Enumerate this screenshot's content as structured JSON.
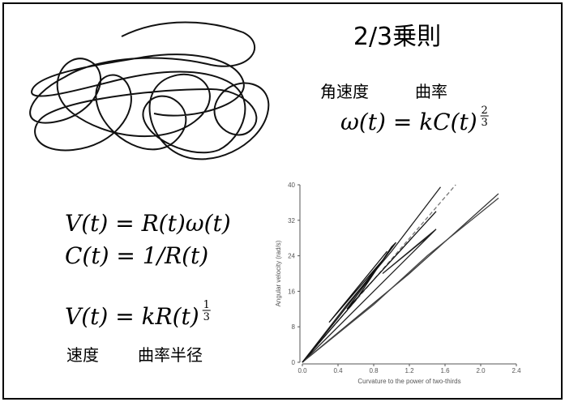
{
  "slide": {
    "title": "2/3乗則",
    "label_angular_velocity": "角速度",
    "label_curvature": "曲率",
    "formula_top": {
      "text": "ω(t) = kC(t)",
      "exp_num": "2",
      "exp_den": "3"
    },
    "formula_1": "V(t) = R(t)ω(t)",
    "formula_2": "C(t) = 1/R(t)",
    "formula_3": {
      "text": "V(t) = kR(t)",
      "exp_num": "1",
      "exp_den": "3"
    },
    "label_velocity": "速度",
    "label_radius": "曲率半径"
  },
  "chart_data": {
    "type": "line",
    "x_label": "Curvature to the power of two-thirds",
    "y_label": "Angular velocity (rad/s)",
    "xlim": [
      0,
      2.4
    ],
    "ylim": [
      0,
      40
    ],
    "xticks": [
      {
        "value": 0,
        "label": "0.0"
      },
      0.4,
      0.8,
      1.2,
      1.6,
      {
        "value": 2,
        "label": "2.0"
      },
      2.4
    ],
    "yticks": [
      0,
      8,
      16,
      24,
      32,
      40
    ],
    "series": [
      {
        "color": "#222222",
        "x": [
          0,
          0.5,
          1.0,
          1.55
        ],
        "values": [
          0,
          13,
          25,
          39.5
        ]
      },
      {
        "color": "#777777",
        "dashed": true,
        "x": [
          0,
          1.72
        ],
        "values": [
          0,
          40
        ]
      },
      {
        "color": "#333333",
        "x": [
          0,
          1.2,
          2.2
        ],
        "values": [
          0,
          20,
          38
        ]
      },
      {
        "color": "#222222",
        "x": [
          0,
          1.5,
          0.9,
          1.45
        ],
        "values": [
          0,
          30,
          20,
          29
        ]
      },
      {
        "color": "#111111",
        "x": [
          0,
          0.6,
          1.0,
          1.05,
          0.5,
          1.5
        ],
        "values": [
          0,
          14,
          26,
          27,
          12,
          34
        ]
      },
      {
        "color": "#444444",
        "x": [
          0,
          0.8,
          1.4,
          2.2
        ],
        "values": [
          0,
          13,
          24,
          37
        ]
      },
      {
        "color": "#111111",
        "x": [
          0,
          0.4,
          0.9,
          0.3,
          0.95
        ],
        "values": [
          0,
          10,
          23,
          9,
          25
        ]
      }
    ]
  }
}
